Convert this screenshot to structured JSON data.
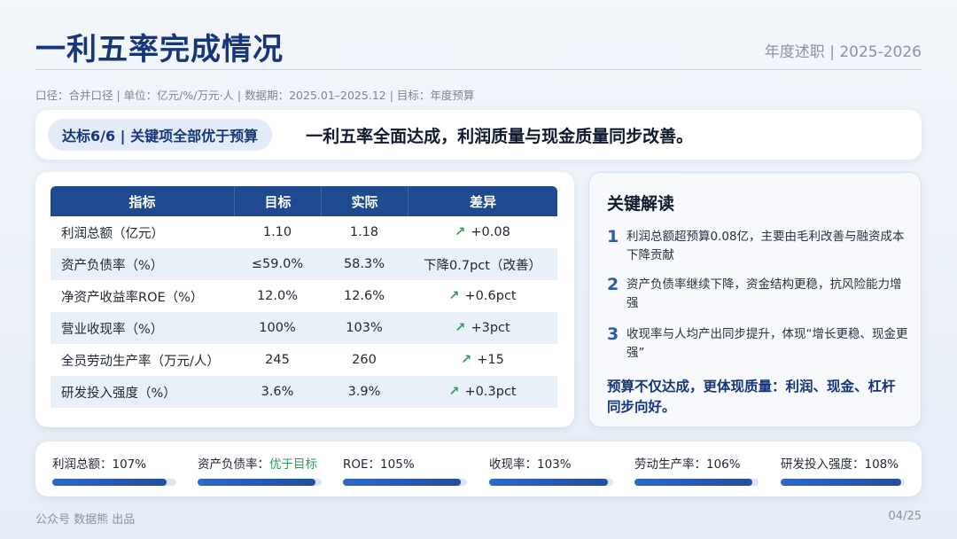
{
  "header": {
    "title": "一利五率完成情况",
    "subtitle": "年度述职 | 2025-2026",
    "meta": "口径：合并口径 | 单位：亿元/%/万元·人 | 数据期：2025.01–2025.12 | 目标：年度预算"
  },
  "banner": {
    "badge": "达标6/6 | 关键项全部优于预算",
    "headline": "一利五率全面达成，利润质量与现金质量同步改善。"
  },
  "table": {
    "headers": [
      "指标",
      "目标",
      "实际",
      "差异"
    ],
    "rows": [
      {
        "name": "利润总额（亿元）",
        "target": "1.10",
        "actual": "1.18",
        "arrow": "↗",
        "diff": "+0.08"
      },
      {
        "name": "资产负债率（%）",
        "target": "≤59.0%",
        "actual": "58.3%",
        "arrow": "",
        "diff": "下降0.7pct（改善）"
      },
      {
        "name": "净资产收益率ROE（%）",
        "target": "12.0%",
        "actual": "12.6%",
        "arrow": "↗",
        "diff": "+0.6pct"
      },
      {
        "name": "营业收现率（%）",
        "target": "100%",
        "actual": "103%",
        "arrow": "↗",
        "diff": "+3pct"
      },
      {
        "name": "全员劳动生产率（万元/人）",
        "target": "245",
        "actual": "260",
        "arrow": "↗",
        "diff": "+15"
      },
      {
        "name": "研发投入强度（%）",
        "target": "3.6%",
        "actual": "3.9%",
        "arrow": "↗",
        "diff": "+0.3pct"
      }
    ]
  },
  "insights": {
    "title": "关键解读",
    "points": [
      {
        "num": "1",
        "text": "利润总额超预算0.08亿，主要由毛利改善与融资成本下降贡献"
      },
      {
        "num": "2",
        "text": "资产负债率继续下降，资金结构更稳，抗风险能力增强"
      },
      {
        "num": "3",
        "text": "收现率与人均产出同步提升，体现“增长更稳、现金更强”"
      }
    ],
    "conclusion": "预算不仅达成，更体现质量：利润、现金、杠杆同步向好。"
  },
  "kpis": [
    {
      "label": "利润总额：",
      "value": "107%",
      "progress": 0.92
    },
    {
      "label": "资产负债率：",
      "value": "优于目标",
      "good": true,
      "progress": 0.95
    },
    {
      "label": "ROE：",
      "value": "105%",
      "progress": 0.95
    },
    {
      "label": "收现率：",
      "value": "103%",
      "progress": 0.96
    },
    {
      "label": "劳动生产率：",
      "value": "106%",
      "progress": 0.95
    },
    {
      "label": "研发投入强度：",
      "value": "108%",
      "progress": 0.97
    }
  ],
  "footer": {
    "left": "公众号 数据熊 出品",
    "right": "04/25"
  },
  "colors": {
    "primary": "#16357a",
    "table_header": "#1f4a8f",
    "positive": "#2a9d5c",
    "bar": "#2f68c8"
  }
}
